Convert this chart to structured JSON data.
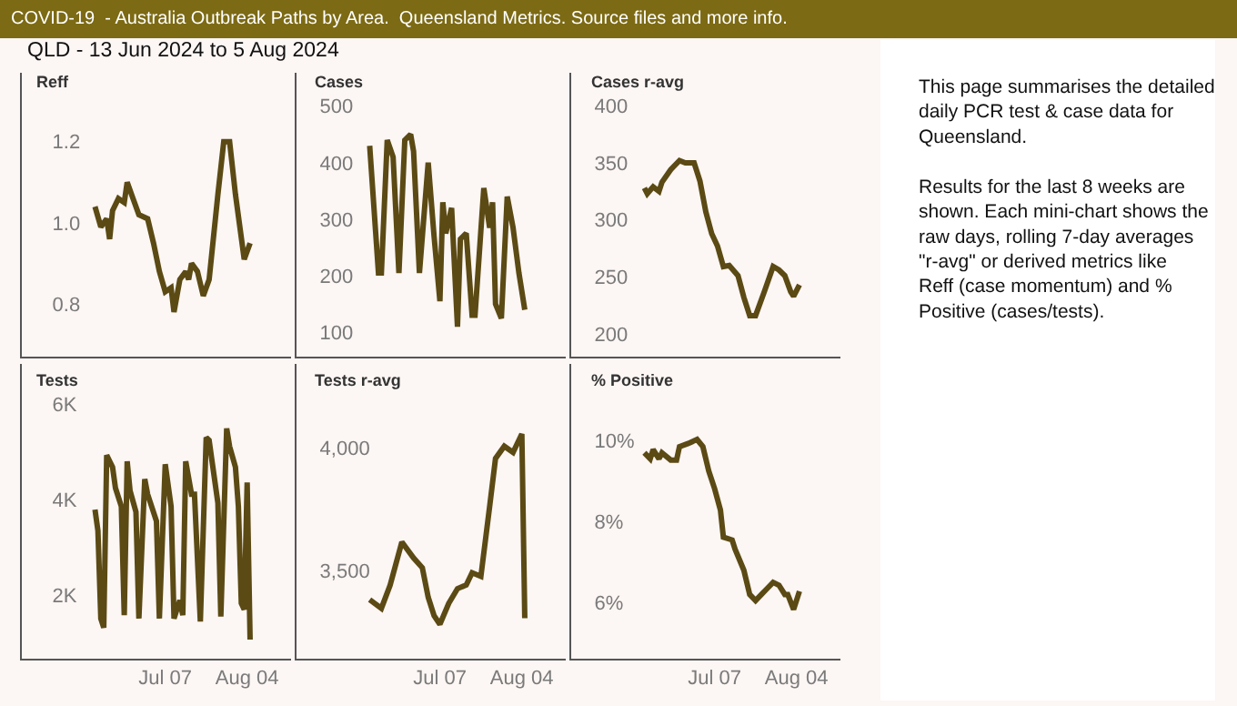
{
  "chart_data": [
    {
      "type": "line",
      "title": "Reff",
      "x": [
        "2024-06-13",
        "2024-06-15",
        "2024-06-17",
        "2024-06-18",
        "2024-06-19",
        "2024-06-21",
        "2024-06-23",
        "2024-06-24",
        "2024-06-26",
        "2024-06-28",
        "2024-07-01",
        "2024-07-03",
        "2024-07-05",
        "2024-07-07",
        "2024-07-09",
        "2024-07-10",
        "2024-07-12",
        "2024-07-14",
        "2024-07-15",
        "2024-07-16",
        "2024-07-18",
        "2024-07-20",
        "2024-07-22",
        "2024-07-25",
        "2024-07-27",
        "2024-07-29",
        "2024-07-31",
        "2024-08-03",
        "2024-08-05"
      ],
      "xlim": [
        "2024-05-19",
        "2024-08-19"
      ],
      "series": [
        {
          "color": "#5b4a14",
          "values": [
            1.04,
            0.99,
            1.01,
            0.96,
            1.03,
            1.06,
            1.05,
            1.1,
            1.06,
            1.02,
            1.01,
            0.95,
            0.88,
            0.83,
            0.84,
            0.78,
            0.86,
            0.88,
            0.86,
            0.9,
            0.88,
            0.82,
            0.86,
            1.07,
            1.2,
            1.2,
            1.07,
            0.91,
            0.95
          ]
        }
      ],
      "ylim": [
        0.67,
        1.37
      ],
      "yticks": [
        0.8,
        {
          "value": 1.0,
          "label": "1.0"
        },
        1.2
      ],
      "tick_labels": "y"
    },
    {
      "type": "line",
      "title": "Cases",
      "x": [
        "2024-06-13",
        "2024-06-16",
        "2024-06-17",
        "2024-06-19",
        "2024-06-21",
        "2024-06-23",
        "2024-06-25",
        "2024-06-27",
        "2024-06-28",
        "2024-06-30",
        "2024-07-03",
        "2024-07-05",
        "2024-07-07",
        "2024-07-08",
        "2024-07-09",
        "2024-07-11",
        "2024-07-13",
        "2024-07-14",
        "2024-07-16",
        "2024-07-18",
        "2024-07-19",
        "2024-07-22",
        "2024-07-24",
        "2024-07-25",
        "2024-07-26",
        "2024-07-28",
        "2024-07-30",
        "2024-08-01",
        "2024-08-03",
        "2024-08-05"
      ],
      "series": [
        {
          "color": "#5b4a14",
          "values": [
            430,
            205,
            205,
            440,
            410,
            205,
            440,
            450,
            420,
            205,
            400,
            270,
            155,
            330,
            275,
            320,
            110,
            265,
            275,
            130,
            130,
            355,
            285,
            330,
            150,
            125,
            340,
            285,
            205,
            140
          ]
        }
      ],
      "xlim": [
        "2024-05-19",
        "2024-08-19"
      ],
      "ylim": [
        57,
        559
      ],
      "yticks": [
        100,
        200,
        300,
        400,
        500
      ],
      "tick_labels": "y"
    },
    {
      "type": "line",
      "title": "Cases r-avg",
      "x": [
        "2024-06-13",
        "2024-06-14",
        "2024-06-16",
        "2024-06-18",
        "2024-06-19",
        "2024-06-22",
        "2024-06-25",
        "2024-06-27",
        "2024-06-30",
        "2024-07-02",
        "2024-07-04",
        "2024-07-06",
        "2024-07-08",
        "2024-07-10",
        "2024-07-12",
        "2024-07-15",
        "2024-07-17",
        "2024-07-19",
        "2024-07-21",
        "2024-07-24",
        "2024-07-27",
        "2024-07-29",
        "2024-07-31",
        "2024-08-02",
        "2024-08-03",
        "2024-08-05"
      ],
      "series": [
        {
          "color": "#5b4a14",
          "values": [
            328,
            323,
            329,
            325,
            333,
            344,
            352,
            350,
            350,
            334,
            307,
            288,
            277,
            259,
            260,
            251,
            232,
            216,
            216,
            237,
            259,
            256,
            251,
            237,
            233,
            243
          ]
        }
      ],
      "xlim": [
        "2024-05-19",
        "2024-08-19"
      ],
      "ylim": [
        180,
        429
      ],
      "yticks": [
        200,
        250,
        300,
        350,
        400
      ],
      "tick_labels": "y"
    },
    {
      "type": "line",
      "title": "Tests",
      "x": [
        "2024-06-13",
        "2024-06-14",
        "2024-06-15",
        "2024-06-16",
        "2024-06-17",
        "2024-06-19",
        "2024-06-20",
        "2024-06-22",
        "2024-06-23",
        "2024-06-24",
        "2024-06-25",
        "2024-06-27",
        "2024-06-28",
        "2024-06-30",
        "2024-07-01",
        "2024-07-04",
        "2024-07-05",
        "2024-07-07",
        "2024-07-09",
        "2024-07-10",
        "2024-07-12",
        "2024-07-13",
        "2024-07-14",
        "2024-07-16",
        "2024-07-17",
        "2024-07-19",
        "2024-07-21",
        "2024-07-22",
        "2024-07-23",
        "2024-07-25",
        "2024-07-26",
        "2024-07-28",
        "2024-07-29",
        "2024-07-31",
        "2024-08-01",
        "2024-08-02",
        "2024-08-03",
        "2024-08-04",
        "2024-08-05"
      ],
      "series": [
        {
          "color": "#5b4a14",
          "values": [
            3800,
            3360,
            1520,
            1330,
            4940,
            4690,
            4250,
            3870,
            1590,
            4810,
            4190,
            3750,
            1520,
            4440,
            4120,
            3560,
            1520,
            4750,
            3870,
            1520,
            1900,
            1590,
            4810,
            4120,
            4120,
            1460,
            5310,
            5250,
            4810,
            3940,
            1560,
            5500,
            5120,
            4690,
            3870,
            1840,
            1710,
            4370,
            1080
          ]
        }
      ],
      "xlim": [
        "2024-05-19",
        "2024-08-19"
      ],
      "xticks": [
        {
          "value": "2024-07-07",
          "label": "Jul 07"
        },
        {
          "value": "2024-08-04",
          "label": "Aug 04"
        }
      ],
      "ylim": [
        680,
        6850
      ],
      "yticks": [
        {
          "value": 2000,
          "label": "2K"
        },
        {
          "value": 4000,
          "label": "4K"
        },
        {
          "value": 6000,
          "label": "6K"
        }
      ]
    },
    {
      "type": "line",
      "title": "Tests r-avg",
      "x": [
        "2024-06-13",
        "2024-06-17",
        "2024-06-20",
        "2024-06-24",
        "2024-06-28",
        "2024-07-01",
        "2024-07-03",
        "2024-07-05",
        "2024-07-07",
        "2024-07-10",
        "2024-07-13",
        "2024-07-16",
        "2024-07-18",
        "2024-07-21",
        "2024-07-24",
        "2024-07-26",
        "2024-07-29",
        "2024-08-01",
        "2024-08-04",
        "2024-08-05"
      ],
      "series": [
        {
          "color": "#5b4a14",
          "values": [
            3380,
            3345,
            3440,
            3615,
            3550,
            3510,
            3390,
            3315,
            3280,
            3365,
            3425,
            3440,
            3490,
            3475,
            3760,
            3955,
            4005,
            3980,
            4055,
            3305
          ]
        }
      ],
      "xlim": [
        "2024-05-19",
        "2024-08-19"
      ],
      "xticks": [
        {
          "value": "2024-07-07",
          "label": "Jul 07"
        },
        {
          "value": "2024-08-04",
          "label": "Aug 04"
        }
      ],
      "ylim": [
        3140,
        4340
      ],
      "yticks": [
        {
          "value": 3500,
          "label": "3,500"
        },
        {
          "value": 4000,
          "label": "4,000"
        }
      ]
    },
    {
      "type": "line",
      "title": "% Positive",
      "x": [
        "2024-06-13",
        "2024-06-15",
        "2024-06-16",
        "2024-06-18",
        "2024-06-19",
        "2024-06-22",
        "2024-06-24",
        "2024-06-25",
        "2024-06-28",
        "2024-07-01",
        "2024-07-03",
        "2024-07-05",
        "2024-07-07",
        "2024-07-09",
        "2024-07-10",
        "2024-07-13",
        "2024-07-14",
        "2024-07-17",
        "2024-07-19",
        "2024-07-21",
        "2024-07-23",
        "2024-07-25",
        "2024-07-27",
        "2024-07-29",
        "2024-07-31",
        "2024-08-01",
        "2024-08-03",
        "2024-08-05"
      ],
      "series": [
        {
          "color": "#5b4a14",
          "values": [
            9.7,
            9.55,
            9.78,
            9.55,
            9.7,
            9.52,
            9.52,
            9.85,
            9.93,
            10.03,
            9.85,
            9.25,
            8.81,
            8.28,
            7.61,
            7.54,
            7.31,
            6.79,
            6.19,
            6.04,
            6.19,
            6.34,
            6.49,
            6.42,
            6.19,
            6.19,
            5.82,
            6.27
          ]
        }
      ],
      "xlim": [
        "2024-05-19",
        "2024-08-19"
      ],
      "xticks": [
        {
          "value": "2024-07-07",
          "label": "Jul 07"
        },
        {
          "value": "2024-08-04",
          "label": "Aug 04"
        }
      ],
      "ylim": [
        4.6,
        11.9
      ],
      "yticks": [
        {
          "value": 6,
          "label": "6%"
        },
        {
          "value": 8,
          "label": "8%"
        },
        {
          "value": 10,
          "label": "10%"
        }
      ]
    },
    {
      "type": "other",
      "title": "COVID-19  - Australia Outbreak Paths by Area.  Queensland Metrics. Source files and more info.",
      "subtitle": "QLD - 13 Jun 2024 to 5 Aug 2024",
      "annotations": [
        "This page summarises the detailed daily PCR test & case data for Queensland.",
        "Results for the last 8 weeks are shown. Each mini-chart shows the raw days, rolling 7-day averages \"r-avg\" or derived metrics like Reff (case momentum) and % Positive (cases/tests)."
      ]
    }
  ]
}
